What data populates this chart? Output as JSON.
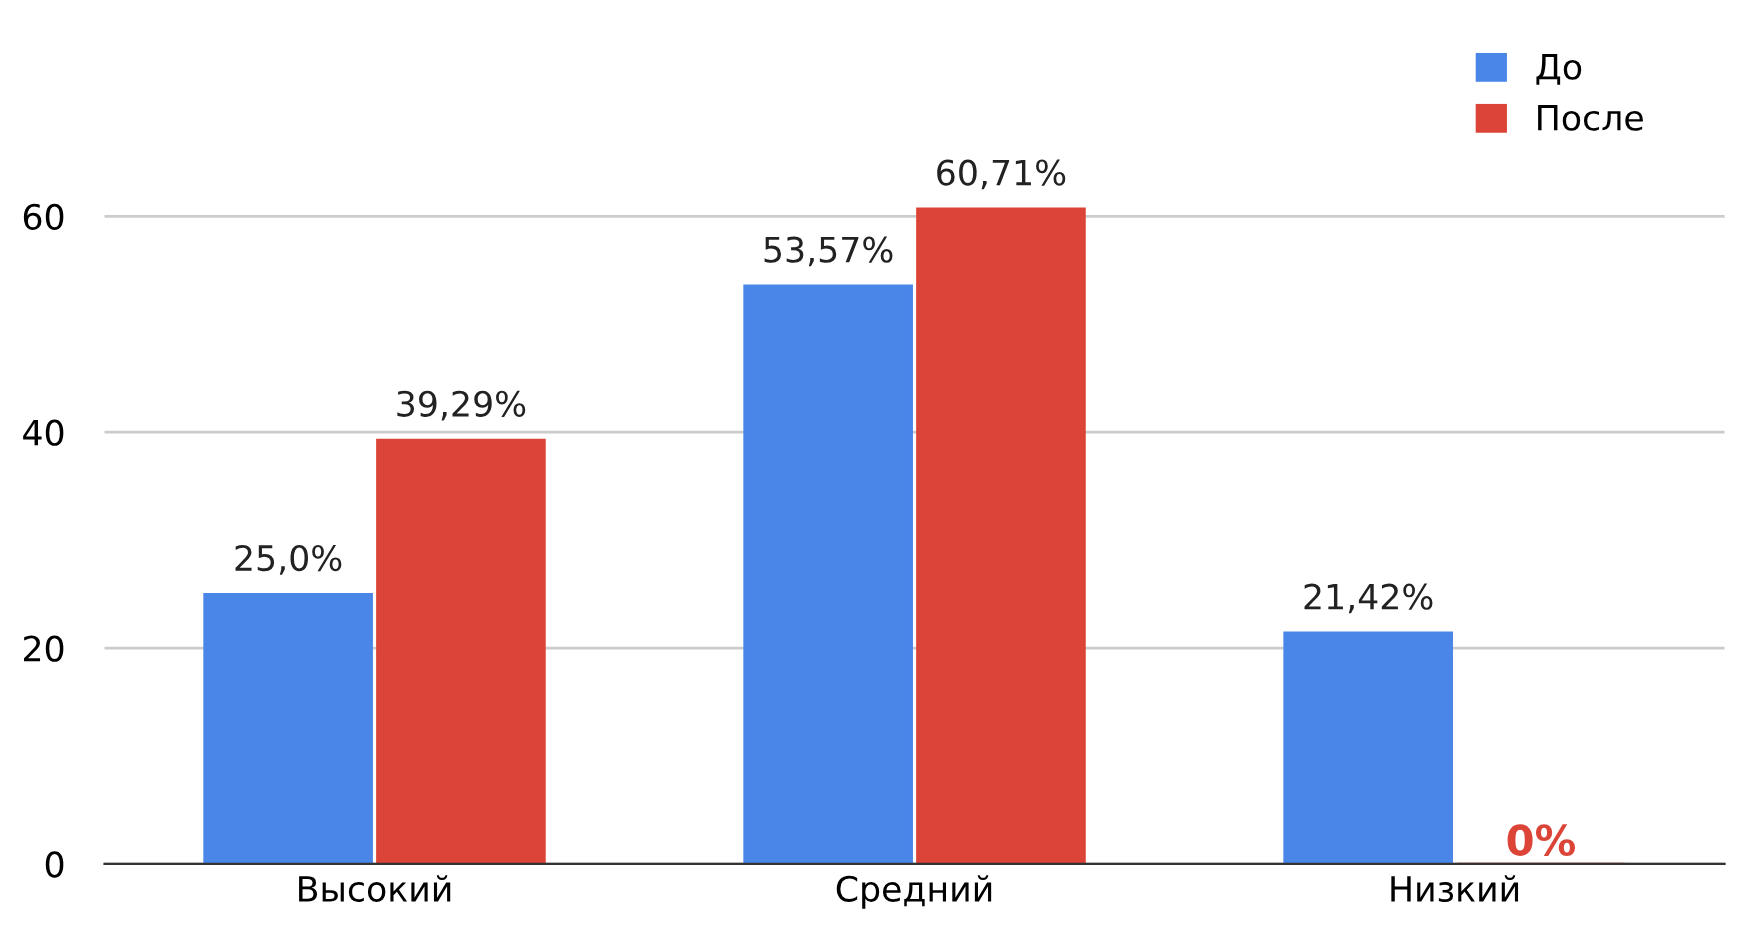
{
  "chart_data": {
    "type": "bar",
    "categories": [
      "Высокий",
      "Средний",
      "Низкий"
    ],
    "series": [
      {
        "name": "До",
        "color": "#4a86e8",
        "values": [
          25.0,
          53.57,
          21.42
        ],
        "value_labels": [
          "25,0%",
          "53,57%",
          "21,42%"
        ]
      },
      {
        "name": "После",
        "color": "#db4437",
        "values": [
          39.29,
          60.71,
          0
        ],
        "value_labels": [
          "39,29%",
          "60,71%",
          "0%"
        ]
      }
    ],
    "ylim": [
      0,
      70
    ],
    "yticks": [
      0,
      20,
      40,
      60
    ],
    "grid": "y",
    "legend": "top right"
  }
}
